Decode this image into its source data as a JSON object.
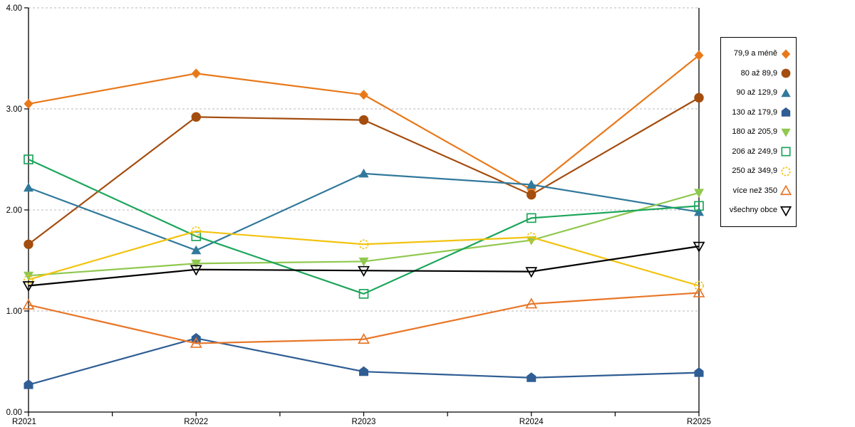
{
  "chart_data": {
    "type": "line",
    "title": "",
    "xlabel": "",
    "ylabel": "",
    "categories": [
      "R2021",
      "R2022",
      "R2023",
      "R2024",
      "R2025"
    ],
    "ylim": [
      0,
      4
    ],
    "yticks": [
      "0.00",
      "1.00",
      "2.00",
      "3.00",
      "4.00"
    ],
    "grid": "horizontal-dashed",
    "grid_color": "#b9b9b9",
    "axis_color": "#000000",
    "legend_position": "right",
    "series": [
      {
        "name": "79,9 a méně",
        "color": "#e8791b",
        "marker": "diamond",
        "fill": "filled",
        "values": [
          3.05,
          3.35,
          3.14,
          2.2,
          3.53
        ]
      },
      {
        "name": "80 až 89,9",
        "color": "#a44d0f",
        "marker": "circle",
        "fill": "filled",
        "values": [
          1.66,
          2.92,
          2.89,
          2.15,
          3.11
        ]
      },
      {
        "name": "90 až 129,9",
        "color": "#31799b",
        "marker": "triangle-up",
        "fill": "filled",
        "values": [
          2.22,
          1.6,
          2.36,
          2.25,
          1.98
        ]
      },
      {
        "name": "130 až 179,9",
        "color": "#2f5d94",
        "marker": "pentagon",
        "fill": "filled",
        "values": [
          0.27,
          0.73,
          0.4,
          0.34,
          0.39
        ]
      },
      {
        "name": "180 až 205,9",
        "color": "#90c84f",
        "marker": "triangle-down",
        "fill": "filled",
        "values": [
          1.35,
          1.47,
          1.49,
          1.7,
          2.17
        ]
      },
      {
        "name": "206 až 249,9",
        "color": "#1da65c",
        "marker": "square",
        "fill": "hollow",
        "values": [
          2.5,
          1.74,
          1.17,
          1.92,
          2.04
        ]
      },
      {
        "name": "250 až 349,9",
        "color": "#f2c30f",
        "marker": "circle-dashed",
        "fill": "hollow",
        "values": [
          1.31,
          1.79,
          1.66,
          1.73,
          1.25
        ]
      },
      {
        "name": "více než 350",
        "color": "#e87628",
        "marker": "triangle-up",
        "fill": "hollow",
        "values": [
          1.06,
          0.68,
          0.72,
          1.07,
          1.18
        ]
      },
      {
        "name": "všechny obce",
        "color": "#000000",
        "marker": "triangle-down",
        "fill": "hollow",
        "values": [
          1.25,
          1.41,
          1.4,
          1.39,
          1.64
        ]
      }
    ]
  }
}
